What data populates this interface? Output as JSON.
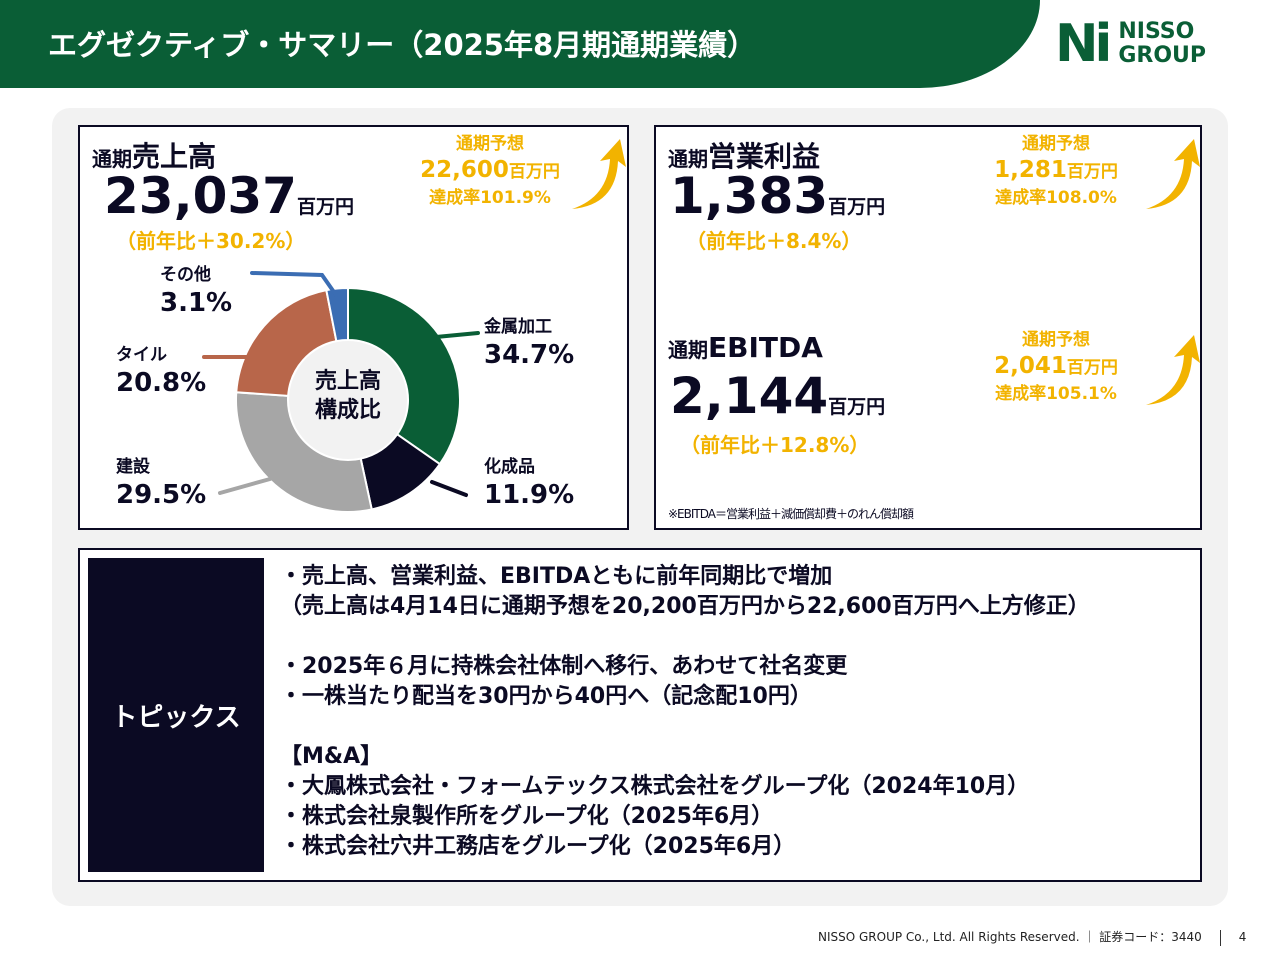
{
  "header": {
    "title": "エグゼクティブ・サマリー（2025年8月期通期業績）",
    "logo_mark": "Ni",
    "logo_line1": "NISSO",
    "logo_line2": "GROUP"
  },
  "sales": {
    "prefix": "通期",
    "label": "売上高",
    "value": "23,037",
    "unit": "百万円",
    "yoy": "（前年比＋30.2%）",
    "forecast_label": "通期予想",
    "forecast_value": "22,600",
    "forecast_unit": "百万円",
    "achievement": "達成率101.9%",
    "center_label_1": "売上高",
    "center_label_2": "構成比"
  },
  "op": {
    "prefix": "通期",
    "label": "営業利益",
    "value": "1,383",
    "unit": "百万円",
    "yoy": "（前年比＋8.4%）",
    "forecast_label": "通期予想",
    "forecast_value": "1,281",
    "forecast_unit": "百万円",
    "achievement": "達成率108.0%"
  },
  "ebitda": {
    "prefix": "通期",
    "label": "EBITDA",
    "value": "2,144",
    "unit": "百万円",
    "yoy": "（前年比＋12.8%）",
    "forecast_label": "通期予想",
    "forecast_value": "2,041",
    "forecast_unit": "百万円",
    "achievement": "達成率105.1%",
    "note": "※EBITDA＝営業利益＋減価償却費＋のれん償却額"
  },
  "chart_data": {
    "type": "pie",
    "title": "売上高構成比",
    "categories": [
      "金属加工",
      "化成品",
      "建設",
      "タイル",
      "その他"
    ],
    "values": [
      34.7,
      11.9,
      29.5,
      20.8,
      3.1
    ],
    "colors": [
      "#0a5e36",
      "#0b0a23",
      "#a6a6a6",
      "#b8664a",
      "#3b6db3"
    ],
    "value_labels": [
      "34.7%",
      "11.9%",
      "29.5%",
      "20.8%",
      "3.1%"
    ]
  },
  "topics": {
    "heading": "トピックス",
    "lines": [
      "・売上高、営業利益、EBITDAともに前年同期比で増加",
      "（売上高は4月14日に通期予想を20,200百万円から22,600百万円へ上方修正）",
      "",
      "・2025年６月に持株会社体制へ移行、あわせて社名変更",
      "・一株当たり配当を30円から40円へ（記念配10円）",
      "",
      "【M&A】",
      "・大鳳株式会社・フォームテックス株式会社をグループ化（2024年10月）",
      "・株式会社泉製作所をグループ化（2025年6月）",
      "・株式会社穴井工務店をグループ化（2025年6月）"
    ]
  },
  "footer": {
    "copyright": "NISSO GROUP Co., Ltd. All Rights Reserved.",
    "code": "｜ 証券コード：3440",
    "page": "4"
  }
}
